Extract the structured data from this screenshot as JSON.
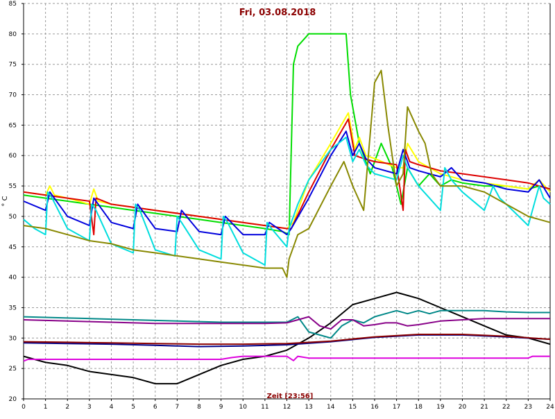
{
  "chart_data": {
    "type": "line",
    "title": "Fri, 03.08.2018",
    "xlabel": "Zeit [23:56]",
    "ylabel": "° C",
    "xlim": [
      0,
      24
    ],
    "ylim": [
      20,
      85
    ],
    "x_ticks": [
      0,
      1,
      2,
      3,
      4,
      5,
      6,
      7,
      8,
      9,
      10,
      11,
      12,
      13,
      14,
      15,
      16,
      17,
      18,
      19,
      20,
      21,
      22,
      23,
      24
    ],
    "y_ticks": [
      20,
      25,
      30,
      35,
      40,
      45,
      50,
      55,
      60,
      65,
      70,
      75,
      80,
      85
    ],
    "grid": true,
    "series": [
      {
        "color": "#00dd00",
        "x": [
          0,
          1,
          2,
          3,
          4,
          5,
          6,
          7,
          8,
          9,
          10,
          11,
          11.8,
          12.1,
          12.3,
          12.5,
          13,
          14,
          14.7,
          14.9,
          15.3,
          15.8,
          16.3,
          16.8,
          17.2,
          17.5,
          18,
          18.5,
          19,
          19.5,
          20,
          21,
          22,
          23,
          23.5,
          24
        ],
        "y": [
          53.5,
          53,
          52.5,
          52,
          51.5,
          51,
          50.5,
          50,
          49.5,
          49,
          48.5,
          48,
          47.5,
          47,
          75,
          78,
          80,
          80,
          80,
          70,
          62,
          57,
          62,
          58,
          52,
          58,
          55,
          57,
          55,
          56,
          55.5,
          55,
          55,
          54.5,
          55,
          54.5
        ]
      },
      {
        "color": "#ffff00",
        "x": [
          0,
          1,
          1.2,
          1.4,
          2,
          3,
          3.2,
          3.4,
          4,
          5,
          6,
          7,
          8,
          9,
          10,
          11,
          12,
          12.3,
          13,
          14,
          14.8,
          15.1,
          15.3,
          15.6,
          16,
          17,
          17.3,
          17.5,
          18,
          19,
          20,
          21,
          22,
          23,
          23.5,
          24
        ],
        "y": [
          54,
          53.5,
          55,
          53.5,
          53,
          52,
          54.5,
          52.5,
          52,
          51.5,
          51,
          50.5,
          50,
          49.5,
          49,
          48.5,
          48,
          49,
          56,
          62,
          67,
          61,
          63,
          60,
          59.5,
          58,
          58,
          62,
          59,
          57,
          56,
          55.5,
          55,
          54.5,
          56,
          54
        ]
      },
      {
        "color": "#dd0000",
        "x": [
          0,
          1,
          2,
          3,
          3.2,
          3.3,
          4,
          5,
          6,
          7,
          8,
          9,
          10,
          11,
          12,
          12.2,
          13,
          14,
          14.8,
          15.1,
          15.5,
          16,
          17,
          17.3,
          17.4,
          17.6,
          18,
          19,
          20,
          21,
          22,
          23,
          24
        ],
        "y": [
          54,
          53.5,
          53,
          52.5,
          47,
          53,
          52,
          51.5,
          51,
          50.5,
          50,
          49.5,
          49,
          48.5,
          48,
          48,
          54,
          61,
          66,
          60,
          59.5,
          59,
          58.5,
          51,
          61,
          59,
          58.5,
          57.5,
          57,
          56.5,
          56,
          55.5,
          54.5
        ]
      },
      {
        "color": "#0000dd",
        "x": [
          0,
          1,
          1.2,
          2,
          3,
          3.2,
          4,
          5,
          5.2,
          6,
          7,
          7.2,
          8,
          9,
          9.2,
          10,
          11,
          11.2,
          12,
          12.2,
          13,
          14,
          14.7,
          15,
          15.3,
          15.6,
          16,
          17,
          17.3,
          17.6,
          18,
          19,
          19.5,
          20,
          21,
          22,
          23,
          23.5,
          24
        ],
        "y": [
          52.5,
          51,
          54,
          50,
          48.5,
          53,
          49,
          48,
          52,
          48,
          47.5,
          51,
          47.5,
          47,
          50,
          47,
          47,
          49,
          47,
          48,
          53,
          60,
          64,
          60,
          62,
          59.5,
          58,
          57,
          61,
          58,
          57.5,
          56.5,
          58,
          56,
          55.5,
          54.5,
          54,
          56,
          53
        ]
      },
      {
        "color": "#00dddd",
        "x": [
          0,
          0.5,
          1,
          1.1,
          1.3,
          2,
          3,
          3.1,
          3.3,
          4,
          5,
          5.1,
          5.3,
          6,
          6.9,
          7,
          7.2,
          8,
          9,
          9.1,
          9.3,
          10,
          11,
          11.1,
          11.3,
          12,
          12.1,
          12.5,
          13,
          14,
          14.7,
          15,
          15.3,
          15.6,
          16,
          17,
          17.3,
          17.5,
          18,
          18.5,
          19,
          19.2,
          19.5,
          20,
          21,
          21.4,
          21.7,
          22,
          23,
          23.5,
          23.7,
          24
        ],
        "y": [
          49.5,
          48,
          47,
          54,
          53,
          48,
          46,
          52,
          51,
          45.5,
          44,
          52,
          51,
          44.5,
          43.5,
          50,
          49,
          44.5,
          43,
          50,
          49,
          44,
          42,
          49,
          48,
          45,
          48,
          52,
          56,
          61,
          63,
          59,
          61,
          58.5,
          57,
          56,
          60,
          58,
          55,
          53,
          51,
          58,
          56,
          54,
          51,
          55,
          53,
          52,
          48.5,
          55,
          53,
          52
        ]
      },
      {
        "color": "#888800",
        "x": [
          0,
          1,
          2,
          3,
          4,
          5,
          6,
          7,
          8,
          9,
          10,
          11,
          11.8,
          12,
          12.1,
          12.5,
          13,
          14,
          14.6,
          15,
          15.5,
          16,
          16.3,
          16.6,
          17,
          17.3,
          17.5,
          18,
          18.3,
          18.6,
          19,
          20,
          21,
          22,
          23,
          23.5,
          24
        ],
        "y": [
          48.5,
          48,
          47,
          46,
          45.5,
          44.5,
          44,
          43.5,
          43,
          42.5,
          42,
          41.5,
          41.5,
          40,
          43,
          47,
          48,
          55,
          59,
          55,
          51,
          72,
          74,
          65,
          55,
          57,
          68,
          64,
          62,
          57,
          55,
          55,
          54,
          52,
          50,
          49.5,
          49
        ]
      },
      {
        "color": "#000000",
        "x": [
          0,
          1,
          2,
          3,
          4,
          5,
          6,
          7,
          8,
          9,
          10,
          11,
          12,
          13,
          14,
          15,
          16,
          17,
          17.5,
          18,
          19,
          20,
          21,
          22,
          23,
          24
        ],
        "y": [
          27,
          26,
          25.5,
          24.5,
          24,
          23.5,
          22.5,
          22.5,
          24,
          25.5,
          26.5,
          27,
          28,
          30,
          32.5,
          35.5,
          36.5,
          37.5,
          37,
          36.5,
          35,
          33.5,
          32,
          30.5,
          30,
          29
        ]
      },
      {
        "color": "#008888",
        "x": [
          0,
          1,
          2,
          3,
          4,
          5,
          6,
          7,
          8,
          9,
          10,
          11,
          12,
          12.5,
          13,
          13.5,
          14,
          14.5,
          15,
          15.5,
          16,
          16.5,
          17,
          17.5,
          18,
          18.5,
          19,
          20,
          21,
          22,
          23,
          24
        ],
        "y": [
          33.5,
          33.4,
          33.3,
          33.2,
          33.1,
          33,
          32.9,
          32.8,
          32.7,
          32.6,
          32.6,
          32.6,
          32.6,
          33.5,
          31,
          30.5,
          30,
          32,
          33,
          32.5,
          33.5,
          34,
          34.5,
          34,
          34.5,
          34,
          34.5,
          34.5,
          34.5,
          34.3,
          34.2,
          34.2
        ]
      },
      {
        "color": "#880088",
        "x": [
          0,
          1,
          2,
          3,
          4,
          5,
          6,
          7,
          8,
          9,
          10,
          11,
          12,
          12.5,
          13,
          13.5,
          14,
          14.5,
          15,
          15.5,
          16,
          16.5,
          17,
          17.5,
          18,
          19,
          20,
          21,
          22,
          23,
          24
        ],
        "y": [
          33,
          32.9,
          32.8,
          32.7,
          32.6,
          32.5,
          32.4,
          32.4,
          32.4,
          32.4,
          32.4,
          32.4,
          32.5,
          33,
          33.5,
          32,
          31.5,
          33,
          33,
          32,
          32.2,
          32.5,
          32.5,
          32,
          32.2,
          32.8,
          33,
          33.2,
          33.2,
          33.2,
          33.2
        ]
      },
      {
        "color": "#000088",
        "x": [
          0,
          2,
          4,
          6,
          8,
          10,
          12,
          14,
          16,
          18,
          20,
          22,
          24
        ],
        "y": [
          29.2,
          29.1,
          29,
          28.8,
          28.6,
          28.7,
          28.9,
          29.4,
          30.1,
          30.5,
          30.5,
          30.2,
          29.8
        ]
      },
      {
        "color": "#8b0000",
        "x": [
          0,
          2,
          4,
          6,
          8,
          10,
          12,
          14,
          16,
          18,
          20,
          22,
          24
        ],
        "y": [
          29.4,
          29.3,
          29.2,
          29.1,
          29,
          29,
          29.1,
          29.5,
          30.2,
          30.6,
          30.6,
          30.3,
          29.8
        ]
      },
      {
        "color": "#dd00dd",
        "x": [
          0,
          0.2,
          2,
          4,
          6,
          8,
          9,
          9.5,
          10,
          11,
          12,
          12.3,
          12.5,
          13,
          14,
          16,
          18,
          20,
          22,
          23,
          23.2,
          24
        ],
        "y": [
          26.2,
          26.5,
          26.5,
          26.5,
          26.5,
          26.5,
          26.5,
          26.8,
          27,
          27,
          27,
          26.3,
          27,
          26.7,
          26.7,
          26.7,
          26.7,
          26.7,
          26.7,
          26.7,
          27,
          27
        ]
      }
    ]
  }
}
